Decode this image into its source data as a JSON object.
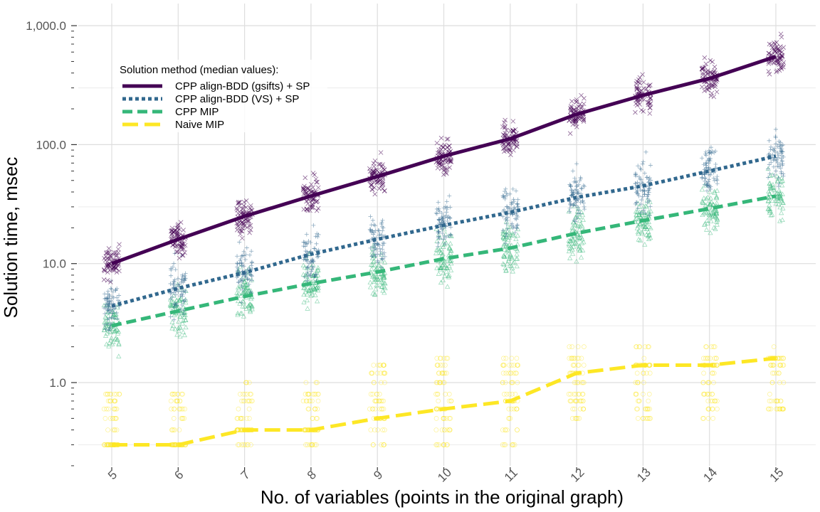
{
  "chart_data": {
    "type": "line",
    "xlabel": "No. of variables (points in the original graph)",
    "ylabel": "Solution time, msec",
    "y_scale": "log",
    "ylim": [
      0.17,
      1800
    ],
    "xlim": [
      4.5,
      15.5
    ],
    "grid": true,
    "x_ticks": [
      5,
      6,
      7,
      8,
      9,
      10,
      11,
      12,
      13,
      14,
      15
    ],
    "y_tick_labels": [
      "1,000.0",
      "100.0",
      "10.0",
      "1.0"
    ],
    "y_tick_values": [
      1000,
      100,
      10,
      1
    ],
    "legend": {
      "title": "Solution method (median values):",
      "placement": "top-left"
    },
    "series": [
      {
        "name": "CPP align-BDD (gsifts) + SP",
        "color": "#440154",
        "dash": "solid",
        "marker": "x",
        "x": [
          5,
          6,
          7,
          8,
          9,
          10,
          11,
          12,
          13,
          14,
          15
        ],
        "values": [
          10,
          16,
          25,
          37,
          54,
          80,
          112,
          180,
          260,
          360,
          550
        ]
      },
      {
        "name": "CPP align-BDD (VS) + SP",
        "color": "#31688e",
        "dash": "dotted",
        "marker": "+",
        "x": [
          5,
          6,
          7,
          8,
          9,
          10,
          11,
          12,
          13,
          14,
          15
        ],
        "values": [
          4.4,
          6.2,
          8.4,
          12,
          16,
          21,
          27,
          36,
          45,
          60,
          80
        ]
      },
      {
        "name": "CPP MIP",
        "color": "#35b779",
        "dash": "dashed",
        "marker": "triangle",
        "x": [
          5,
          6,
          7,
          8,
          9,
          10,
          11,
          12,
          13,
          14,
          15
        ],
        "values": [
          3.0,
          4.0,
          5.3,
          6.8,
          8.5,
          11,
          13.5,
          18,
          23,
          29,
          37
        ]
      },
      {
        "name": "Naive MIP",
        "color": "#fde725",
        "dash": "longdash",
        "marker": "circle",
        "x": [
          5,
          6,
          7,
          8,
          9,
          10,
          11,
          12,
          13,
          14,
          15
        ],
        "values": [
          0.3,
          0.3,
          0.4,
          0.4,
          0.5,
          0.6,
          0.7,
          1.2,
          1.4,
          1.4,
          1.6
        ]
      }
    ]
  }
}
